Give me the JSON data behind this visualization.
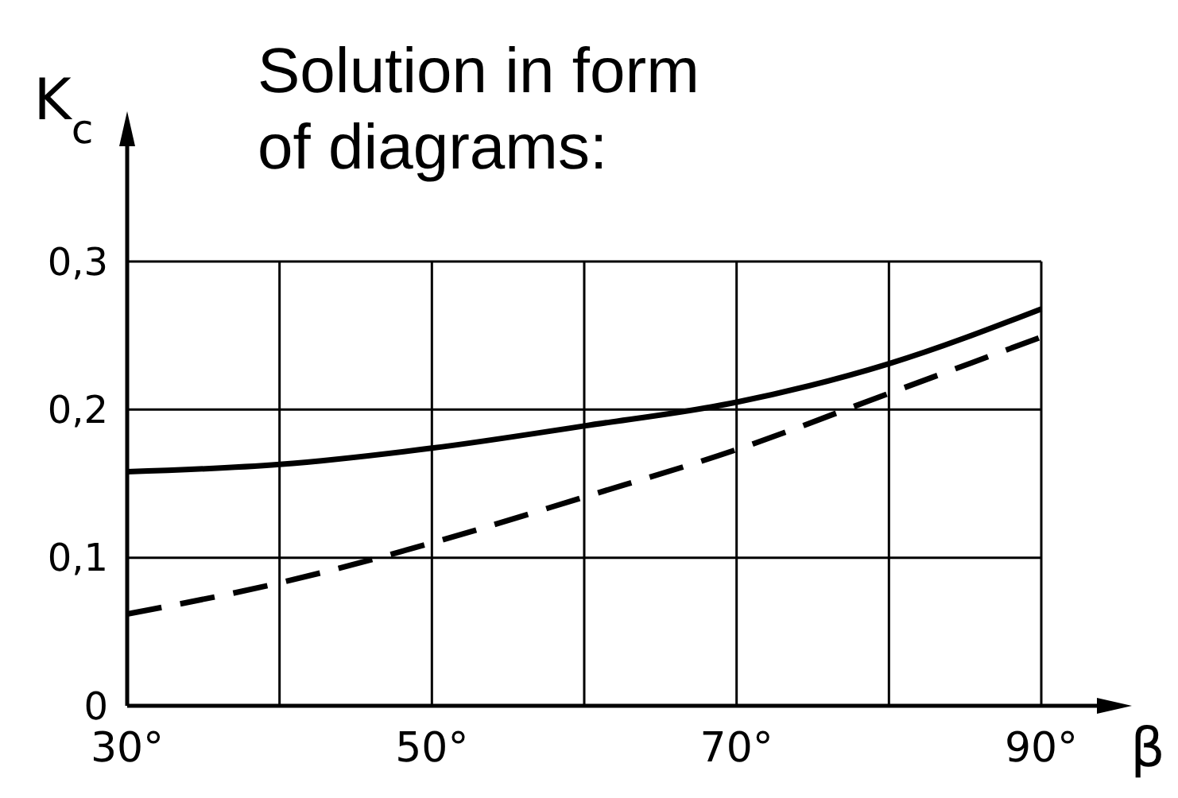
{
  "chart_data": {
    "type": "line",
    "title": "Solution in form of diagrams:",
    "xlabel": "β",
    "ylabel": "K$_{c}$",
    "x": [
      30,
      40,
      50,
      60,
      70,
      80,
      90
    ],
    "series": [
      {
        "color": "#000000",
        "line_style": "solid",
        "values": [
          0.158,
          0.163,
          0.174,
          0.189,
          0.205,
          0.231,
          0.268
        ]
      },
      {
        "color": "#000000",
        "line_style": "dashed",
        "values": [
          0.062,
          0.083,
          0.11,
          0.141,
          0.173,
          0.211,
          0.249
        ]
      }
    ],
    "xlim": [
      30,
      90
    ],
    "xticks": [
      {
        "value": 30,
        "label": "30°"
      },
      {
        "value": 40,
        "label": null
      },
      {
        "value": 50,
        "label": "50°"
      },
      {
        "value": 60,
        "label": null
      },
      {
        "value": 70,
        "label": "70°"
      },
      {
        "value": 80,
        "label": null
      },
      {
        "value": 90,
        "label": "90°"
      }
    ],
    "ylim": [
      0,
      0.38
    ],
    "yticks": [
      {
        "value": 0,
        "label": "0"
      },
      {
        "value": 0.1,
        "label": "0,1"
      },
      {
        "value": 0.2,
        "label": "0,2"
      },
      {
        "value": 0.3,
        "label": "0,3"
      }
    ],
    "grid": true,
    "marker": "none"
  }
}
